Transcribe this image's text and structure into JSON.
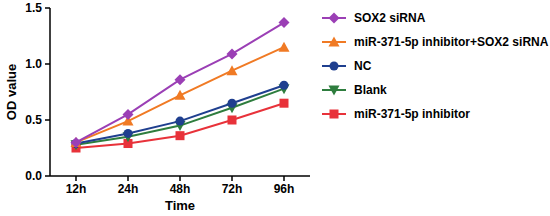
{
  "chart_data": {
    "type": "line",
    "x_label": "Time",
    "y_label": "OD value",
    "categories": [
      "12h",
      "24h",
      "48h",
      "72h",
      "96h"
    ],
    "ylim": [
      0,
      1.5
    ],
    "yticks": [
      {
        "value": 0,
        "label": "0.0"
      },
      0.5,
      {
        "value": 1,
        "label": "1.0"
      },
      1.5
    ],
    "legend": "right",
    "series": [
      {
        "name": "SOX2 siRNA",
        "color": "#9b3fb5",
        "marker": "diamond",
        "values": [
          0.3,
          0.55,
          0.86,
          1.09,
          1.37
        ]
      },
      {
        "name": "miR-371-5p inhibitor+SOX2 siRNA",
        "color": "#f07a24",
        "marker": "triangle-up",
        "values": [
          0.3,
          0.49,
          0.72,
          0.94,
          1.15
        ]
      },
      {
        "name": "NC",
        "color": "#1f3f8f",
        "marker": "circle",
        "values": [
          0.29,
          0.38,
          0.49,
          0.65,
          0.81
        ]
      },
      {
        "name": "Blank",
        "color": "#2e7d3e",
        "marker": "triangle-down",
        "values": [
          0.28,
          0.35,
          0.45,
          0.61,
          0.78
        ]
      },
      {
        "name": "miR-371-5p inhibitor",
        "color": "#e8323a",
        "marker": "square",
        "values": [
          0.25,
          0.29,
          0.36,
          0.5,
          0.65
        ]
      }
    ]
  }
}
